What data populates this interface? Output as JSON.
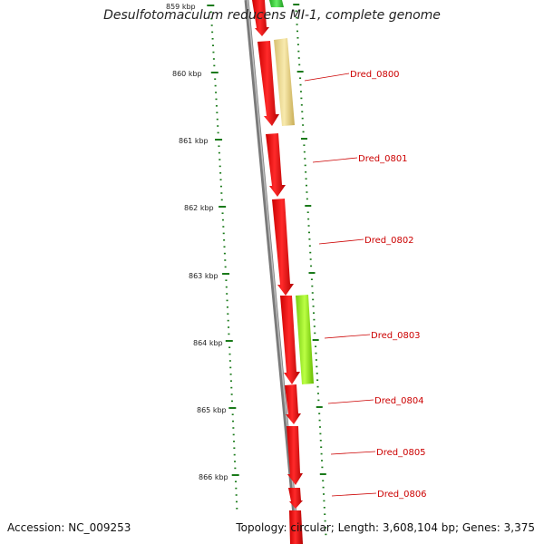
{
  "title": "Desulfotomaculum reducens MI-1, complete genome",
  "footer": {
    "accession": "Accession: NC_009253",
    "topology": "Topology: circular; Length: 3,608,104 bp; Genes: 3,375"
  },
  "colors": {
    "gene_red": "#ff0000",
    "gene_green": "#33cc33",
    "gene_lightgreen": "#99ee22",
    "gene_tan": "#f0e0a0",
    "backbone": "#808080",
    "tick_green": "#1a7a1a",
    "label_red": "#cc0000"
  },
  "kbp_labels": [
    "859 kbp",
    "860 kbp",
    "861 kbp",
    "862 kbp",
    "863 kbp",
    "864 kbp",
    "865 kbp",
    "866 kbp"
  ],
  "gene_labels": [
    "Dred_0800",
    "Dred_0801",
    "Dred_0802",
    "Dred_0803",
    "Dred_0804",
    "Dred_0805",
    "Dred_0806"
  ]
}
